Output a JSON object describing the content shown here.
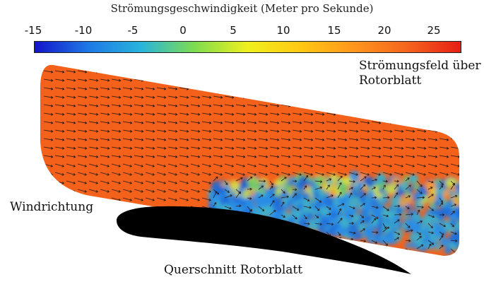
{
  "colorbar": {
    "title": "Strömungsgeschwindigkeit (Meter pro Sekunde)",
    "ticks": [
      "-15",
      "-10",
      "-5",
      "0",
      "5",
      "10",
      "15",
      "20",
      "25"
    ],
    "tick_values": [
      -15,
      -10,
      -5,
      0,
      5,
      10,
      15,
      20,
      25
    ],
    "range": [
      -15,
      28
    ],
    "colors": [
      "#1414c8",
      "#1e78e6",
      "#28b4dc",
      "#7ddc50",
      "#f0f01e",
      "#ffc814",
      "#ff961e",
      "#f5641e",
      "#e61e14"
    ]
  },
  "labels": {
    "flow_field": "Strömungsfeld über",
    "flow_field_line2": "Rotorblatt",
    "wind_direction": "Windrichtung",
    "cross_section": "Querschnitt Rotorblatt"
  },
  "colors": {
    "free_stream": "#f46a1c",
    "reverse_flow": "#1f6fdc",
    "airfoil": "#000000",
    "vectors": "#2a1a14"
  }
}
